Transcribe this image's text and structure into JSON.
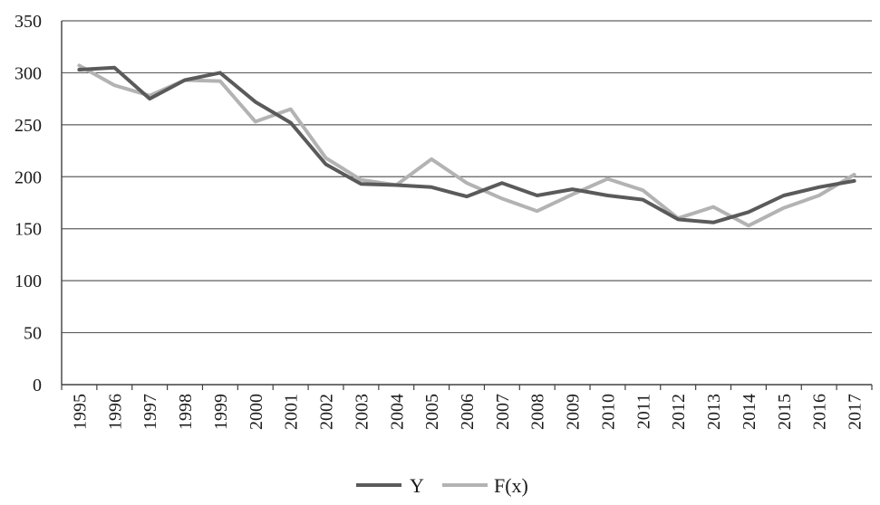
{
  "chart_data": {
    "type": "line",
    "categories": [
      "1995",
      "1996",
      "1997",
      "1998",
      "1999",
      "2000",
      "2001",
      "2002",
      "2003",
      "2004",
      "2005",
      "2006",
      "2007",
      "2008",
      "2009",
      "2010",
      "2011",
      "2012",
      "2013",
      "2014",
      "2015",
      "2016",
      "2017"
    ],
    "series": [
      {
        "name": "Y",
        "color": "#5a5a5a",
        "values": [
          303,
          305,
          275,
          293,
          300,
          272,
          252,
          212,
          193,
          192,
          190,
          181,
          194,
          182,
          188,
          182,
          178,
          159,
          156,
          166,
          182,
          190,
          196
        ]
      },
      {
        "name": "F(x)",
        "color": "#b3b3b3",
        "values": [
          307,
          288,
          278,
          293,
          292,
          253,
          265,
          218,
          197,
          192,
          217,
          194,
          179,
          167,
          183,
          198,
          187,
          160,
          171,
          153,
          170,
          182,
          202
        ]
      }
    ],
    "ylim": [
      0,
      350
    ],
    "yticks": [
      0,
      50,
      100,
      150,
      200,
      250,
      300,
      350
    ],
    "grid": true,
    "legend_position": "bottom"
  }
}
